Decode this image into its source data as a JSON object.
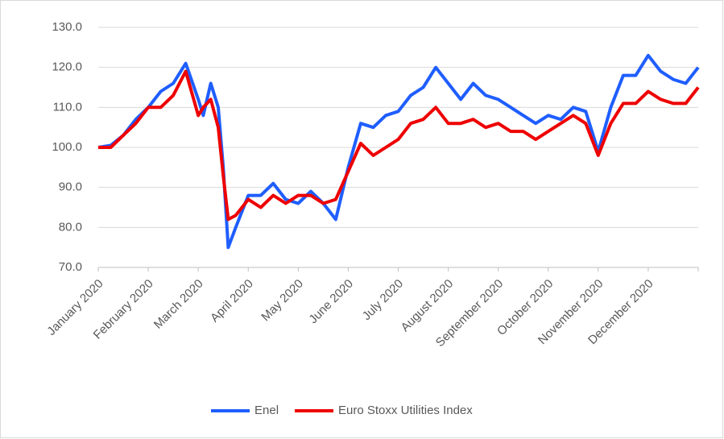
{
  "chart_data": {
    "type": "line",
    "x": [
      0,
      0.25,
      0.5,
      0.75,
      1,
      1.25,
      1.5,
      1.75,
      2,
      2.1,
      2.25,
      2.4,
      2.5,
      2.6,
      2.75,
      3,
      3.25,
      3.5,
      3.75,
      4,
      4.25,
      4.5,
      4.75,
      5,
      5.25,
      5.5,
      5.75,
      6,
      6.25,
      6.5,
      6.75,
      7,
      7.25,
      7.5,
      7.75,
      8,
      8.25,
      8.5,
      8.75,
      9,
      9.25,
      9.5,
      9.75,
      10,
      10.25,
      10.5,
      10.75,
      11,
      11.25,
      11.5,
      11.75,
      12
    ],
    "series": [
      {
        "name": "Enel",
        "color": "#1f5eff",
        "values": [
          100,
          100.5,
          103,
          107,
          110,
          114,
          116,
          121,
          112,
          108,
          116,
          110,
          95,
          75,
          80,
          88,
          88,
          91,
          87,
          86,
          89,
          86,
          82,
          95,
          106,
          105,
          108,
          109,
          113,
          115,
          120,
          116,
          112,
          116,
          113,
          112,
          110,
          108,
          106,
          108,
          107,
          110,
          109,
          99,
          110,
          118,
          118,
          123,
          119,
          117,
          116,
          120
        ]
      },
      {
        "name": "Euro Stoxx Utilities Index",
        "color": "#ee0000",
        "values": [
          100,
          100,
          103,
          106,
          110,
          110,
          113,
          119,
          108,
          110,
          112,
          105,
          93,
          82,
          83,
          87,
          85,
          88,
          86,
          88,
          88,
          86,
          87,
          94,
          101,
          98,
          100,
          102,
          106,
          107,
          110,
          106,
          106,
          107,
          105,
          106,
          104,
          104,
          102,
          104,
          106,
          108,
          106,
          98,
          106,
          111,
          111,
          114,
          112,
          111,
          111,
          115
        ]
      }
    ],
    "xlim": [
      0,
      12
    ],
    "xticks": [
      {
        "value": 0,
        "label": "January 2020"
      },
      {
        "value": 1,
        "label": "February 2020"
      },
      {
        "value": 2,
        "label": "March 2020"
      },
      {
        "value": 3,
        "label": "April 2020"
      },
      {
        "value": 4,
        "label": "May 2020"
      },
      {
        "value": 5,
        "label": "June 2020"
      },
      {
        "value": 6,
        "label": "July 2020"
      },
      {
        "value": 7,
        "label": "August 2020"
      },
      {
        "value": 8,
        "label": "September 2020"
      },
      {
        "value": 9,
        "label": "October 2020"
      },
      {
        "value": 10,
        "label": "November 2020"
      },
      {
        "value": 11,
        "label": "December 2020"
      }
    ],
    "ylim": [
      70,
      130
    ],
    "yticks": [
      {
        "value": 70,
        "label": "70.0"
      },
      {
        "value": 80,
        "label": "80.0"
      },
      {
        "value": 90,
        "label": "90.0"
      },
      {
        "value": 100,
        "label": "100.0"
      },
      {
        "value": 110,
        "label": "110.0"
      },
      {
        "value": 120,
        "label": "120.0"
      },
      {
        "value": 130,
        "label": "130.0"
      }
    ],
    "grid": true,
    "legend": "bottom"
  }
}
